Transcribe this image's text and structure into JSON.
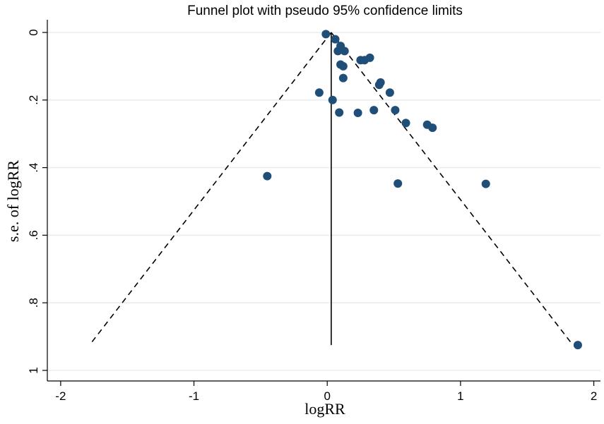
{
  "chart_data": {
    "type": "scatter",
    "title": "Funnel plot with pseudo 95% confidence limits",
    "xlabel": "logRR",
    "ylabel": "s.e. of logRR",
    "xlim": [
      -2.1,
      2.05
    ],
    "ylim": [
      1.0,
      0.0
    ],
    "y_axis_reversed": true,
    "x_ticks": [
      -2,
      -1,
      0,
      1,
      2
    ],
    "x_tick_labels": [
      "-2",
      "-1",
      "0",
      "1",
      "2"
    ],
    "y_ticks": [
      0,
      0.2,
      0.4,
      0.6,
      0.8,
      1
    ],
    "y_tick_labels": [
      "0",
      ".2",
      ".4",
      ".6",
      ".8",
      "1"
    ],
    "grid": "horizontal",
    "pooled_estimate": 0.03,
    "max_se": 0.925,
    "colors": {
      "points": "#1f4e79",
      "lines": "#000000",
      "grid": "#e6eef3"
    },
    "points": [
      {
        "x": -0.01,
        "y": 0.005
      },
      {
        "x": 0.06,
        "y": 0.02
      },
      {
        "x": 0.1,
        "y": 0.04
      },
      {
        "x": 0.08,
        "y": 0.055
      },
      {
        "x": 0.13,
        "y": 0.055
      },
      {
        "x": 0.32,
        "y": 0.075
      },
      {
        "x": 0.25,
        "y": 0.082
      },
      {
        "x": 0.28,
        "y": 0.082
      },
      {
        "x": 0.1,
        "y": 0.095
      },
      {
        "x": 0.12,
        "y": 0.1
      },
      {
        "x": 0.12,
        "y": 0.135
      },
      {
        "x": 0.4,
        "y": 0.148
      },
      {
        "x": 0.39,
        "y": 0.155
      },
      {
        "x": -0.06,
        "y": 0.178
      },
      {
        "x": 0.47,
        "y": 0.178
      },
      {
        "x": 0.04,
        "y": 0.2
      },
      {
        "x": 0.51,
        "y": 0.23
      },
      {
        "x": 0.35,
        "y": 0.23
      },
      {
        "x": 0.09,
        "y": 0.237
      },
      {
        "x": 0.23,
        "y": 0.238
      },
      {
        "x": 0.59,
        "y": 0.268
      },
      {
        "x": 0.75,
        "y": 0.273
      },
      {
        "x": 0.79,
        "y": 0.282
      },
      {
        "x": -0.45,
        "y": 0.425
      },
      {
        "x": 0.53,
        "y": 0.447
      },
      {
        "x": 1.19,
        "y": 0.448
      },
      {
        "x": 1.88,
        "y": 0.925
      }
    ]
  }
}
